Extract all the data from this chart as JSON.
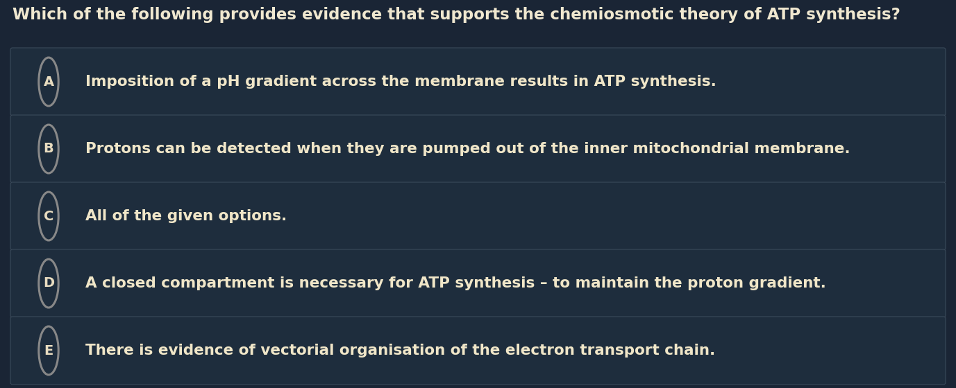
{
  "title": "Which of the following provides evidence that supports the chemiosmotic theory of ATP synthesis?",
  "title_color": "#F0E8D0",
  "title_fontsize": 16.5,
  "title_fontweight": "bold",
  "background_color": "#1a2535",
  "row_bg_dark": "#1e2d3d",
  "row_bg_light": "#253545",
  "row_border_color": "#3a4a5a",
  "answer_text_color": "#F0E6C8",
  "answer_fontsize": 15.5,
  "answer_fontweight": "bold",
  "label_color": "#E8DCC0",
  "label_fontsize": 14,
  "circle_edge_color": "#888888",
  "options": [
    {
      "label": "A",
      "text": "Imposition of a pH gradient across the membrane results in ATP synthesis."
    },
    {
      "label": "B",
      "text": "Protons can be detected when they are pumped out of the inner mitochondrial membrane."
    },
    {
      "label": "C",
      "text": "All of the given options."
    },
    {
      "label": "D",
      "text": "A closed compartment is necessary for ATP synthesis – to maintain the proton gradient."
    },
    {
      "label": "E",
      "text": "There is evidence of vectorial organisation of the electron transport chain."
    }
  ],
  "fig_width": 13.77,
  "fig_height": 5.6,
  "dpi": 100
}
